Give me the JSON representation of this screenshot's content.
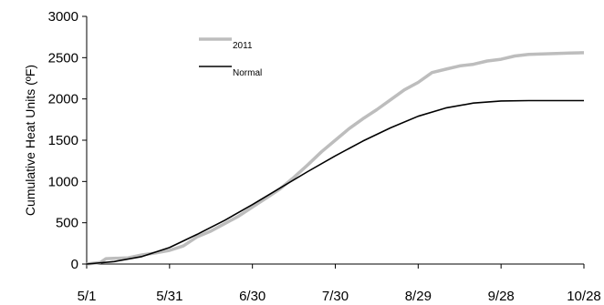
{
  "chart_data": {
    "type": "line",
    "ylabel": "Cumulative Heat Units (ºF)",
    "xlabel": "",
    "title": "",
    "ylim": [
      0,
      3000
    ],
    "yticks": [
      0,
      500,
      1000,
      1500,
      2000,
      2500,
      3000
    ],
    "xlim": [
      "5/1",
      "10/28"
    ],
    "xticks": [
      "5/1",
      "5/31",
      "6/30",
      "7/30",
      "8/29",
      "9/28",
      "10/28"
    ],
    "grid": false,
    "legend_position": "top-left",
    "colors": {
      "2011": "#bdbdbd",
      "Normal": "#000000"
    },
    "series": [
      {
        "name": "2011",
        "points": [
          [
            "5/1",
            0
          ],
          [
            "5/6",
            20
          ],
          [
            "5/8",
            65
          ],
          [
            "5/16",
            75
          ],
          [
            "5/21",
            110
          ],
          [
            "5/26",
            135
          ],
          [
            "5/31",
            165
          ],
          [
            "6/5",
            220
          ],
          [
            "6/10",
            330
          ],
          [
            "6/15",
            400
          ],
          [
            "6/20",
            490
          ],
          [
            "6/25",
            580
          ],
          [
            "6/30",
            690
          ],
          [
            "7/5",
            800
          ],
          [
            "7/10",
            910
          ],
          [
            "7/15",
            1050
          ],
          [
            "7/20",
            1200
          ],
          [
            "7/25",
            1360
          ],
          [
            "7/30",
            1500
          ],
          [
            "8/4",
            1640
          ],
          [
            "8/9",
            1760
          ],
          [
            "8/14",
            1870
          ],
          [
            "8/19",
            1990
          ],
          [
            "8/24",
            2110
          ],
          [
            "8/29",
            2200
          ],
          [
            "9/3",
            2320
          ],
          [
            "9/8",
            2360
          ],
          [
            "9/13",
            2400
          ],
          [
            "9/18",
            2420
          ],
          [
            "9/23",
            2460
          ],
          [
            "9/28",
            2480
          ],
          [
            "10/3",
            2520
          ],
          [
            "10/8",
            2540
          ],
          [
            "10/13",
            2545
          ],
          [
            "10/18",
            2550
          ],
          [
            "10/23",
            2555
          ],
          [
            "10/28",
            2560
          ]
        ]
      },
      {
        "name": "Normal",
        "points": [
          [
            "5/1",
            0
          ],
          [
            "5/11",
            30
          ],
          [
            "5/21",
            90
          ],
          [
            "5/31",
            200
          ],
          [
            "6/10",
            360
          ],
          [
            "6/20",
            530
          ],
          [
            "6/30",
            720
          ],
          [
            "7/10",
            920
          ],
          [
            "7/20",
            1120
          ],
          [
            "7/30",
            1310
          ],
          [
            "8/9",
            1490
          ],
          [
            "8/19",
            1650
          ],
          [
            "8/29",
            1790
          ],
          [
            "9/8",
            1890
          ],
          [
            "9/18",
            1950
          ],
          [
            "9/28",
            1975
          ],
          [
            "10/8",
            1980
          ],
          [
            "10/18",
            1980
          ],
          [
            "10/28",
            1980
          ]
        ]
      }
    ]
  }
}
